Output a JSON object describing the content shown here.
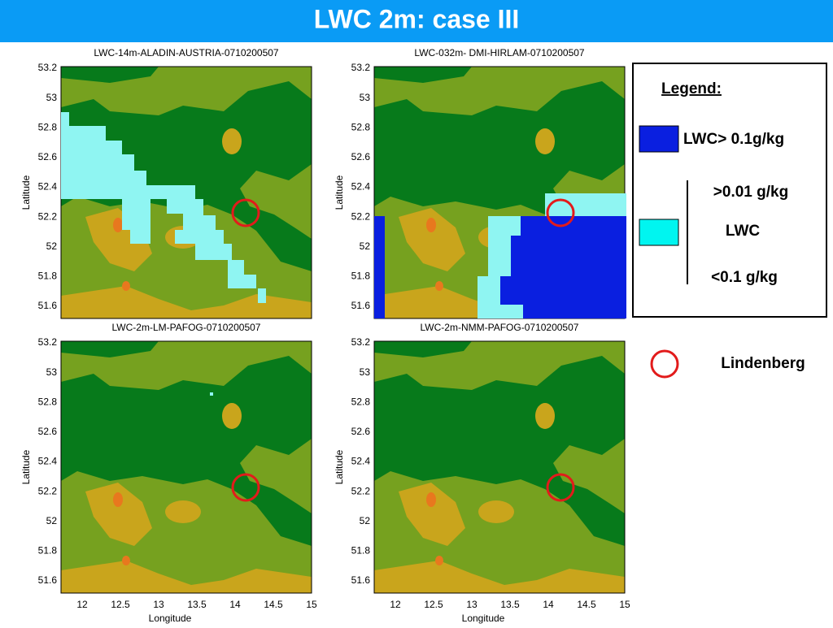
{
  "header": {
    "title": "LWC 2m: case III"
  },
  "panels": [
    {
      "title": "LWC-14m-ALADIN-AUSTRIA-0710200507",
      "y_label": "Latitude",
      "yticks": [
        53.2,
        53,
        52.8,
        52.6,
        52.4,
        52.2,
        52,
        51.8,
        51.6
      ]
    },
    {
      "title": "LWC-032m- DMI-HIRLAM-0710200507",
      "y_label": "Latitude",
      "yticks": [
        53.2,
        53,
        52.8,
        52.6,
        52.4,
        52.2,
        52,
        51.8,
        51.6
      ]
    },
    {
      "title": "LWC-2m-LM-PAFOG-0710200507",
      "y_label": "Latitude",
      "yticks": [
        53.2,
        53,
        52.8,
        52.6,
        52.4,
        52.2,
        52,
        51.8,
        51.6
      ],
      "x_label": "Longitude",
      "xticks": [
        12,
        12.5,
        13,
        13.5,
        14,
        14.5,
        15
      ]
    },
    {
      "title": "LWC-2m-NMM-PAFOG-0710200507",
      "y_label": "Latitude",
      "yticks": [
        53.2,
        53,
        52.8,
        52.6,
        52.4,
        52.2,
        52,
        51.8,
        51.6
      ],
      "x_label": "Longitude",
      "xticks": [
        12,
        12.5,
        13,
        13.5,
        14,
        14.5,
        15
      ]
    }
  ],
  "legend": {
    "title": "Legend:",
    "high": "LWC> 0.1g/kg",
    "mid_top": ">0.01 g/kg",
    "mid_name": "LWC",
    "mid_bottom": "<0.1 g/kg",
    "site": "Lindenberg"
  }
}
